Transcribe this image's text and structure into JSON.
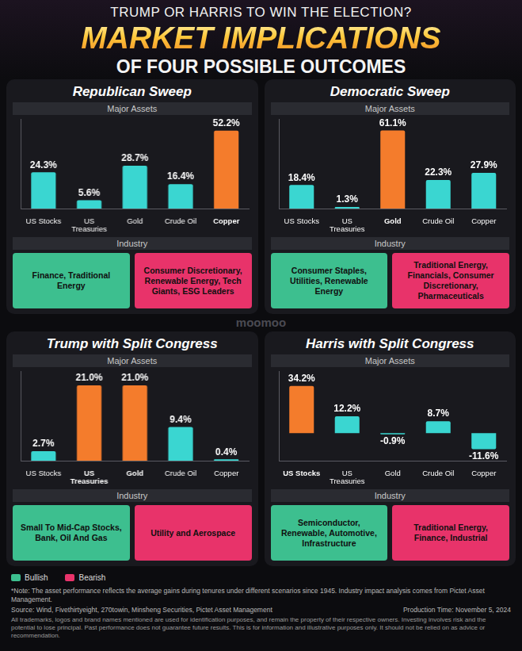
{
  "header": {
    "kicker": "TRUMP OR HARRIS TO WIN THE ELECTION?",
    "title": "MARKET IMPLICATIONS",
    "subtitle": "OF FOUR POSSIBLE OUTCOMES"
  },
  "watermark": "moomoo",
  "chart_data": [
    {
      "type": "bar",
      "title": "Republican Sweep",
      "subtitle": "Major Assets",
      "categories": [
        "US Stocks",
        "US Treasuries",
        "Gold",
        "Crude Oil",
        "Copper"
      ],
      "values": [
        24.3,
        5.6,
        28.7,
        16.4,
        52.2
      ],
      "value_labels": [
        "24.3%",
        "5.6%",
        "28.7%",
        "16.4%",
        "52.2%"
      ],
      "colors": [
        "#3ad6d1",
        "#3ad6d1",
        "#3ad6d1",
        "#3ad6d1",
        "#f47c2c"
      ],
      "ylim": [
        0,
        60
      ],
      "data_labels": true,
      "tick_labels": "x",
      "grid": false
    },
    {
      "type": "bar",
      "title": "Democratic Sweep",
      "subtitle": "Major Assets",
      "categories": [
        "US Stocks",
        "US Treasuries",
        "Gold",
        "Crude Oil",
        "Copper"
      ],
      "values": [
        18.4,
        1.3,
        61.1,
        22.3,
        27.9
      ],
      "value_labels": [
        "18.4%",
        "1.3%",
        "61.1%",
        "22.3%",
        "27.9%"
      ],
      "colors": [
        "#3ad6d1",
        "#3ad6d1",
        "#f47c2c",
        "#3ad6d1",
        "#3ad6d1"
      ],
      "ylim": [
        0,
        70
      ],
      "data_labels": true,
      "tick_labels": "x",
      "grid": false
    },
    {
      "type": "bar",
      "title": "Trump with Split Congress",
      "subtitle": "Major Assets",
      "categories": [
        "US Stocks",
        "US Treasuries",
        "Gold",
        "Crude Oil",
        "Copper"
      ],
      "values": [
        2.7,
        21.0,
        21.0,
        9.4,
        0.4
      ],
      "value_labels": [
        "2.7%",
        "21.0%",
        "21.0%",
        "9.4%",
        "0.4%"
      ],
      "colors": [
        "#3ad6d1",
        "#f47c2c",
        "#f47c2c",
        "#3ad6d1",
        "#3ad6d1"
      ],
      "ylim": [
        0,
        25
      ],
      "data_labels": true,
      "tick_labels": "x",
      "grid": false
    },
    {
      "type": "bar",
      "title": "Harris with Split Congress",
      "subtitle": "Major Assets",
      "categories": [
        "US Stocks",
        "US Treasuries",
        "Gold",
        "Crude Oil",
        "Copper"
      ],
      "values": [
        34.2,
        12.2,
        -0.9,
        8.7,
        -11.6
      ],
      "value_labels": [
        "34.2%",
        "12.2%",
        "-0.9%",
        "8.7%",
        "-11.6%"
      ],
      "colors": [
        "#f47c2c",
        "#3ad6d1",
        "#3ad6d1",
        "#3ad6d1",
        "#3ad6d1"
      ],
      "ylim": [
        -20,
        45
      ],
      "data_labels": true,
      "tick_labels": "x",
      "grid": false
    }
  ],
  "industry": [
    {
      "heading": "Industry",
      "bullish": "Finance, Traditional Energy",
      "bearish": "Consumer Discretionary, Renewable Energy, Tech Giants, ESG Leaders"
    },
    {
      "heading": "Industry",
      "bullish": "Consumer Staples, Utilities, Renewable Energy",
      "bearish": "Traditional Energy, Financials, Consumer Discretionary, Pharmaceuticals"
    },
    {
      "heading": "Industry",
      "bullish": "Small To Mid-Cap Stocks, Bank, Oil And Gas",
      "bearish": "Utility and Aerospace"
    },
    {
      "heading": "Industry",
      "bullish": "Semiconductor, Renewable, Automotive, Infrastructure",
      "bearish": "Traditional Energy, Finance, Industrial"
    }
  ],
  "legend_items": [
    {
      "label": "Bullish",
      "color": "#3dbf8f"
    },
    {
      "label": "Bearish",
      "color": "#e8336a"
    }
  ],
  "footer": {
    "note": "*Note: The asset performance reflects the average gains during tenures under different scenarios since 1945. Industry impact analysis comes from Pictet Asset Management.",
    "source": "Source: Wind, Fivethirtyeight, 270towin, Minsheng Securities, Pictet Asset Management",
    "production_time": "Production Time: November 5, 2024",
    "disclaimer": "All trademarks, logos and brand names mentioned are used for identification purposes, and remain the property of their respective owners. Investing involves risk and the potential to lose principal. Past performance does not guarantee future results. This is for information and illustrative purposes only. It should not be relied on as advice or recommendation."
  }
}
